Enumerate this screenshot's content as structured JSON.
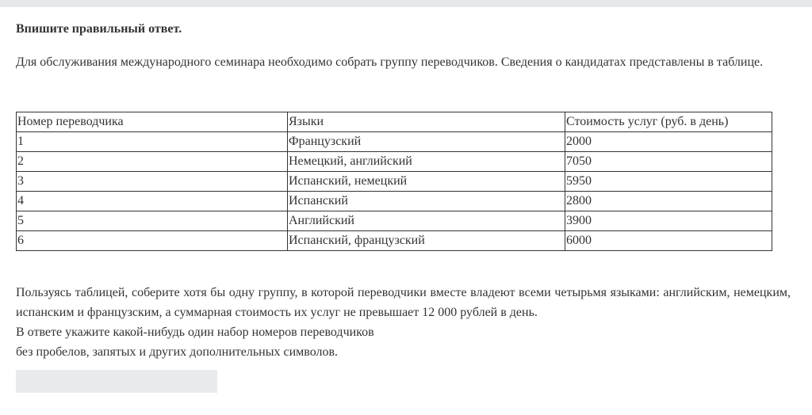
{
  "instruction": "Впишите правильный ответ.",
  "intro": "Для обслуживания международного семинара необходимо собрать группу переводчиков. Сведения о кандидатах представлены в таблице.",
  "table": {
    "headers": [
      "Номер переводчика",
      "Языки",
      "Стоимость услуг (руб. в день)"
    ],
    "rows": [
      [
        "1",
        "Французский",
        "2000"
      ],
      [
        "2",
        "Немецкий, английский",
        "7050"
      ],
      [
        "3",
        "Испанский, немецкий",
        "5950"
      ],
      [
        "4",
        "Испанский",
        "2800"
      ],
      [
        "5",
        "Английский",
        "3900"
      ],
      [
        "6",
        "Испанский, французский",
        "6000"
      ]
    ]
  },
  "task": {
    "line1": "Пользуясь таблицей, соберите хотя бы одну группу, в которой переводчики вместе владеют всеми четырьмя языками: английским, немецким, испанским и французским, а суммарная стоимость их услуг не превышает 12 000 рублей в день.",
    "line2": "В ответе укажите какой-нибудь один набор номеров переводчиков",
    "line3": "без пробелов, запятых и других дополнительных символов."
  },
  "answer": {
    "value": ""
  }
}
